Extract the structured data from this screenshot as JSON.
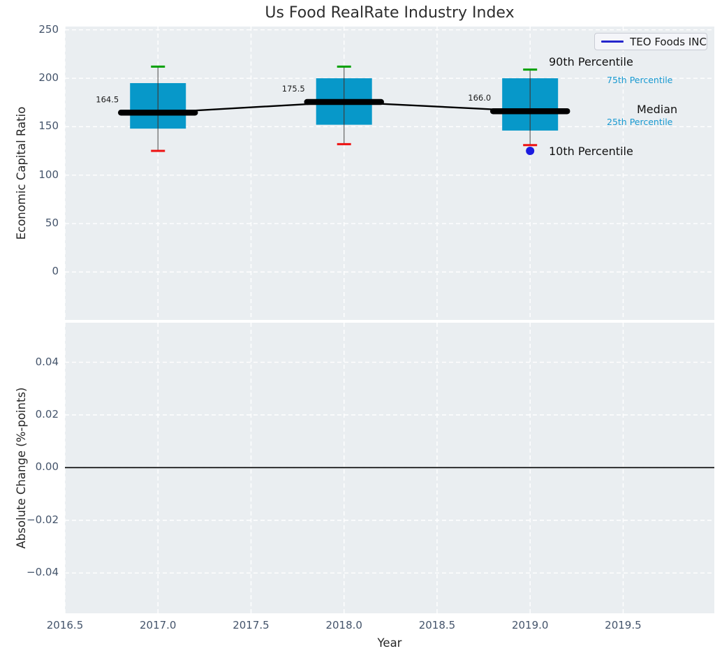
{
  "style": {
    "plot_bg": "#eaeef1",
    "grid_color": "#ffffff",
    "tick_label_color": "#44546b",
    "percentile_label_blue": "#1899d1"
  },
  "chart_data": [
    {
      "type": "boxplot",
      "title": "Us Food RealRate Industry Index",
      "ylabel": "Economic Capital Ratio",
      "xlabel": "",
      "xlim": [
        2016.5,
        2019.99
      ],
      "ylim": [
        -49.5,
        253.4
      ],
      "grid": true,
      "ytick_values": [
        0,
        50,
        100,
        150,
        200,
        250
      ],
      "ytick_labels": [
        "0",
        "50",
        "100",
        "150",
        "200",
        "250"
      ],
      "xtick_values": [
        2016.5,
        2017.0,
        2017.5,
        2018.0,
        2018.5,
        2019.0,
        2019.5
      ],
      "xtick_labels": [
        "2016.5",
        "2017.0",
        "2017.5",
        "2018.0",
        "2018.5",
        "2019.0",
        "2019.5"
      ],
      "legend": {
        "label": "TEO Foods INC",
        "line_color": "#2525cc",
        "position": "upper right"
      },
      "colors": {
        "box_fill": "#0798c9",
        "whisker": "#6e6e6e",
        "cap_upper": "#00a000",
        "cap_lower": "#ee1111",
        "median": "#000000",
        "company_marker": "#1b1be0"
      },
      "boxes": [
        {
          "year": 2017,
          "p90": 212,
          "p75": 195,
          "median": 164.5,
          "p25": 148,
          "p10": 125,
          "median_label": "164.5"
        },
        {
          "year": 2018,
          "p90": 212,
          "p75": 200,
          "median": 175.5,
          "p25": 152,
          "p10": 132,
          "median_label": "175.5"
        },
        {
          "year": 2019,
          "p90": 209,
          "p75": 200,
          "median": 166.0,
          "p25": 146,
          "p10": 131,
          "median_label": "166.0"
        }
      ],
      "company_series": {
        "name": "TEO Foods INC",
        "points": [
          {
            "x": 2019,
            "y": 125
          }
        ]
      },
      "annotations": {
        "p90": "90th Percentile",
        "p75": "75th Percentile",
        "median": "Median",
        "p25": "25th Percentile",
        "p10": "10th Percentile"
      }
    },
    {
      "type": "line",
      "title": "",
      "ylabel": "Absolute Change (%-points)",
      "xlabel": "Year",
      "xlim": [
        2016.5,
        2019.99
      ],
      "ylim": [
        -0.0553,
        0.055
      ],
      "grid": true,
      "ytick_values": [
        -0.04,
        -0.02,
        0,
        0.02,
        0.04
      ],
      "ytick_labels": [
        "−0.04",
        "−0.02",
        "0.00",
        "0.02",
        "0.04"
      ],
      "xtick_values": [
        2016.5,
        2017.0,
        2017.5,
        2018.0,
        2018.5,
        2019.0,
        2019.5
      ],
      "xtick_labels": [
        "2016.5",
        "2017.0",
        "2017.5",
        "2018.0",
        "2018.5",
        "2019.0",
        "2019.5"
      ],
      "zero_line": 0.0,
      "series": []
    }
  ]
}
